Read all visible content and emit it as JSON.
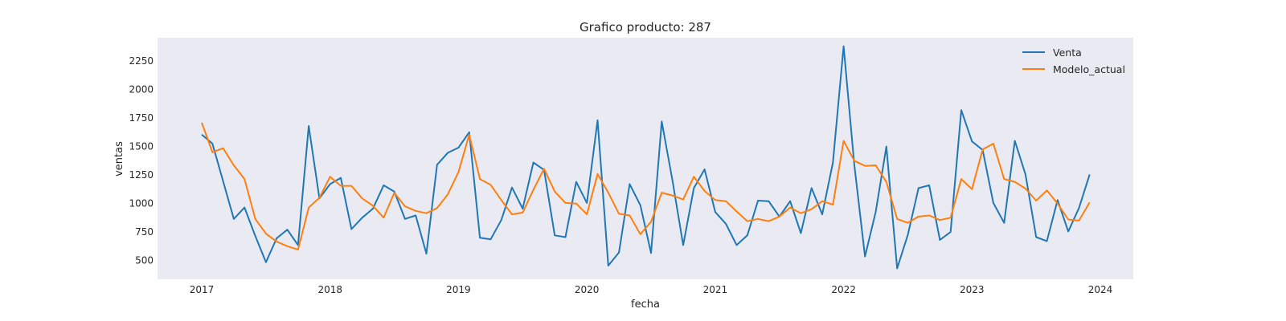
{
  "chart_data": {
    "type": "line",
    "title": "Grafico producto: 287",
    "xlabel": "fecha",
    "ylabel": "ventas",
    "x_start": "2017-01",
    "x_tick_labels": [
      "2017",
      "2018",
      "2019",
      "2020",
      "2021",
      "2022",
      "2023",
      "2024"
    ],
    "y_ticks": [
      500,
      750,
      1000,
      1250,
      1500,
      1750,
      2000,
      2250
    ],
    "ylim": [
      330,
      2450
    ],
    "grid": false,
    "legend_position": "top-right",
    "colors": {
      "plot_background": "#eaeaf2",
      "venta": "#1f77b4",
      "modelo_actual": "#ff7f0e"
    },
    "series": [
      {
        "name": "Venta",
        "color": "#1f77b4",
        "values": [
          1600,
          1520,
          1190,
          860,
          960,
          710,
          480,
          690,
          765,
          630,
          1675,
          1040,
          1165,
          1220,
          770,
          870,
          950,
          1155,
          1100,
          860,
          890,
          555,
          1335,
          1440,
          1485,
          1620,
          695,
          680,
          850,
          1135,
          950,
          1355,
          1290,
          715,
          700,
          1185,
          1000,
          1725,
          450,
          565,
          1165,
          980,
          560,
          1715,
          1200,
          630,
          1130,
          1295,
          920,
          815,
          630,
          715,
          1020,
          1015,
          880,
          1015,
          735,
          1130,
          900,
          1355,
          2375,
          1335,
          530,
          920,
          1495,
          425,
          720,
          1130,
          1155,
          675,
          745,
          1815,
          1540,
          1465,
          1000,
          825,
          1545,
          1250,
          700,
          665,
          1025,
          750,
          955,
          1250
        ]
      },
      {
        "name": "Modelo_actual",
        "color": "#ff7f0e",
        "values": [
          1705,
          1445,
          1480,
          1330,
          1210,
          860,
          730,
          660,
          620,
          590,
          960,
          1045,
          1230,
          1150,
          1150,
          1040,
          975,
          870,
          1090,
          970,
          930,
          910,
          955,
          1075,
          1270,
          1600,
          1210,
          1160,
          1025,
          900,
          915,
          1115,
          1300,
          1100,
          1000,
          995,
          900,
          1255,
          1090,
          905,
          890,
          725,
          835,
          1090,
          1065,
          1030,
          1230,
          1105,
          1025,
          1015,
          925,
          840,
          860,
          840,
          880,
          960,
          910,
          945,
          1015,
          985,
          1545,
          1370,
          1325,
          1330,
          1185,
          860,
          825,
          880,
          890,
          850,
          870,
          1210,
          1120,
          1470,
          1520,
          1210,
          1185,
          1125,
          1020,
          1110,
          995,
          855,
          845,
          1005
        ]
      }
    ]
  }
}
